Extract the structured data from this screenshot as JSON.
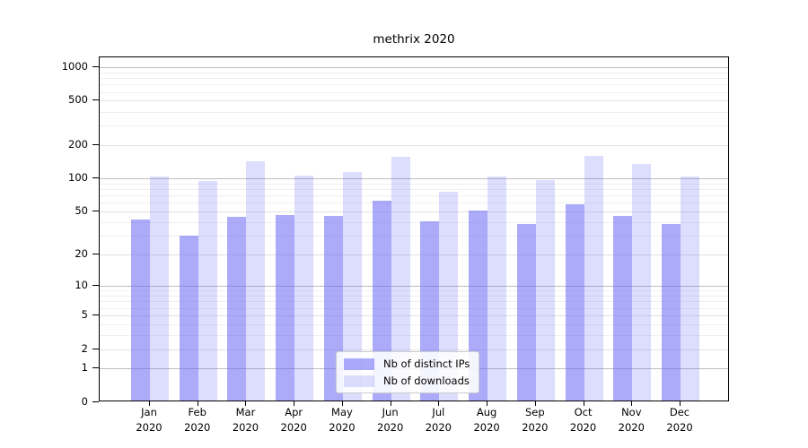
{
  "chart_data": {
    "type": "bar",
    "title": "methrix 2020",
    "scale": "log1p",
    "grid": true,
    "legend_position": "bottom-center",
    "categories": [
      "Jan",
      "Feb",
      "Mar",
      "Apr",
      "May",
      "Jun",
      "Jul",
      "Aug",
      "Sep",
      "Oct",
      "Nov",
      "Dec"
    ],
    "x_sublabel": "2020",
    "series": [
      {
        "name": "Nb of distinct IPs",
        "color": "rgba(102,102,245,0.55)",
        "values": [
          41,
          29,
          43,
          45,
          44,
          60,
          39,
          49,
          37,
          56,
          44,
          37
        ]
      },
      {
        "name": "Nb of downloads",
        "color": "rgba(102,102,245,0.22)",
        "values": [
          101,
          92,
          139,
          103,
          111,
          152,
          73,
          100,
          94,
          154,
          131,
          100
        ]
      }
    ],
    "y_ticks": [
      1000,
      500,
      200,
      100,
      50,
      20,
      10,
      5,
      2,
      1,
      0
    ],
    "ylim": [
      0,
      1226
    ],
    "axis_color": "#000000",
    "decade_grid_color": "#bdbdbd",
    "labeled_grid_color": "#e2e2e2",
    "minor_grid_color": "#f0f0f0"
  }
}
